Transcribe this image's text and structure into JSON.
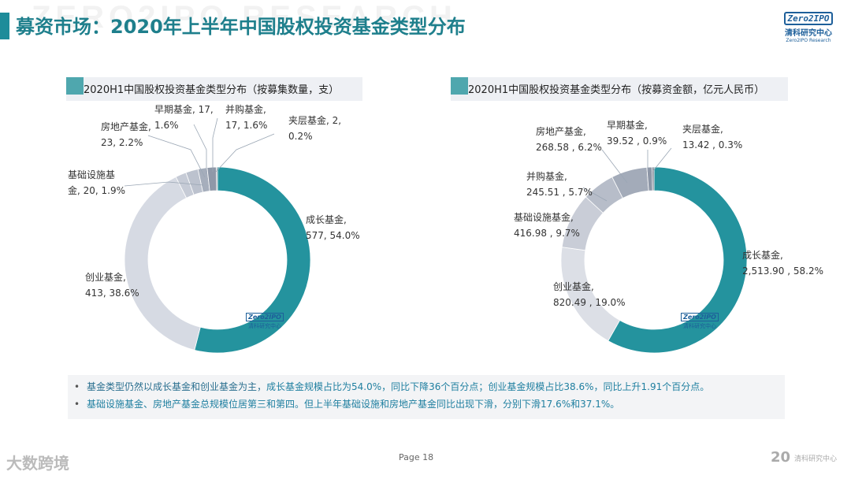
{
  "header": {
    "title": "募资市场：2020年上半年中国股权投资基金类型分布",
    "bg_watermark": "ZERO2IPO RESEARCH",
    "logo_box": "Zero2IPO",
    "logo_cn": "清科研究中心",
    "logo_en": "Zero2IPO Research"
  },
  "charts": {
    "left": {
      "heading": "2020H1中国股权投资基金类型分布（按募集数量，支）"
    },
    "right": {
      "heading": "2020H1中国股权投资基金类型分布（按募资金额，亿元人民币）"
    }
  },
  "chart_logo": {
    "box": "Zero2IPO",
    "cn": "清科研究中心",
    "en": "Zero2IPO Research"
  },
  "chart_data": [
    {
      "type": "pie",
      "donut": true,
      "labels": [
        "成长基金",
        "创业基金",
        "基础设施基金",
        "房地产基金",
        "早期基金",
        "并购基金",
        "夹层基金"
      ],
      "values": [
        577,
        413,
        20,
        23,
        17,
        17,
        2
      ],
      "percents": [
        54.0,
        38.6,
        1.9,
        2.2,
        1.6,
        1.6,
        0.2
      ],
      "colors": [
        "#24939e",
        "#d6dae3",
        "#c6cbd6",
        "#bcc2ce",
        "#a6aebc",
        "#8f98a8",
        "#6d7787"
      ],
      "data_labels": [
        [
          "成长基金,",
          "577, 54.0%"
        ],
        [
          "创业基金,",
          "413, 38.6%"
        ],
        [
          "基础设施基",
          "金, 20, 1.9%"
        ],
        [
          "房地产基金,",
          "23, 2.2%"
        ],
        [
          "早期基金, 17,",
          "1.6%"
        ],
        [
          "并购基金,",
          "17, 1.6%"
        ],
        [
          "夹层基金, 2,",
          "0.2%"
        ]
      ]
    },
    {
      "type": "pie",
      "donut": true,
      "labels": [
        "成长基金",
        "创业基金",
        "基础设施基金",
        "并购基金",
        "房地产基金",
        "早期基金",
        "夹层基金"
      ],
      "values": [
        2513.9,
        820.49,
        416.98,
        245.51,
        268.58,
        39.52,
        13.42
      ],
      "percents": [
        58.2,
        19.0,
        9.7,
        5.7,
        6.2,
        0.9,
        0.3
      ],
      "colors": [
        "#24939e",
        "#dcdfe6",
        "#c9cdd7",
        "#b7bdc9",
        "#a3abb9",
        "#8d96a6",
        "#6d7787"
      ],
      "data_labels": [
        [
          "成长基金,",
          "2,513.90 , 58.2%"
        ],
        [
          "创业基金,",
          "820.49 , 19.0%"
        ],
        [
          "基础设施基金,",
          "416.98 , 9.7%"
        ],
        [
          "并购基金,",
          "245.51 , 5.7%"
        ],
        [
          "房地产基金,",
          "268.58 , 6.2%"
        ],
        [
          "早期基金,",
          "39.52 , 0.9%"
        ],
        [
          "夹层基金,",
          "13.42 , 0.3%"
        ]
      ]
    }
  ],
  "summary": {
    "line1_a": "基金类型仍然以成长基金和创业基金为主，",
    "line1_b": "成长基金规模占比为54.0%，同比下降36个百分点；创业基金规模占比38.6%，同比上升1.91个百分点。",
    "line2": "基础设施基金、房地产基金总规模位居第三和第四。但上半年基础设施和房地产基金同比出现下滑，分别下滑17.6%和37.1%。"
  },
  "footer": {
    "page": "Page  18",
    "wm_left": "大数跨境",
    "wm_right": "20",
    "wm_right_cn": "清科研究中心"
  }
}
